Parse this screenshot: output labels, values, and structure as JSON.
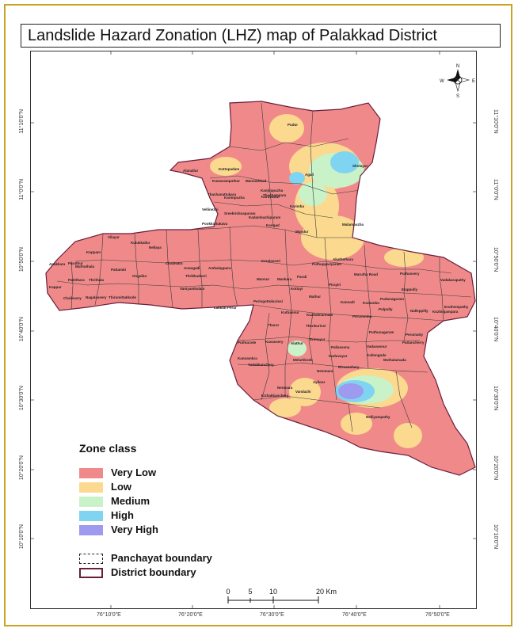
{
  "title": "Landslide Hazard Zonation (LHZ) map of  Palakkad District",
  "colors": {
    "very_low": "#f08a8a",
    "low": "#fbd98f",
    "medium": "#c9f2c9",
    "high": "#7fd4f2",
    "very_high": "#9e9af0",
    "district_boundary": "#6b1d3b",
    "frame": "#c9a227"
  },
  "north_arrow": {
    "n": "N",
    "s": "S",
    "e": "E",
    "w": "W"
  },
  "legend": {
    "title": "Zone class",
    "zones": [
      {
        "label": "Very Low",
        "color": "#f08a8a"
      },
      {
        "label": "Low",
        "color": "#fbd98f"
      },
      {
        "label": "Medium",
        "color": "#c9f2c9"
      },
      {
        "label": "High",
        "color": "#7fd4f2"
      },
      {
        "label": "Very High",
        "color": "#9e9af0"
      }
    ],
    "panchayat_boundary": "Panchayat boundary",
    "district_boundary": "District boundary"
  },
  "scale_bar": {
    "labels": [
      "0",
      "5",
      "10",
      "20 Km"
    ]
  },
  "x_ticks": [
    "76°10'0\"E",
    "76°20'0\"E",
    "76°30'0\"E",
    "76°40'0\"E",
    "76°50'0\"E"
  ],
  "y_ticks": [
    "11°10'0\"N",
    "11°0'0\"N",
    "10°50'0\"N",
    "10°40'0\"N",
    "10°30'0\"N",
    "10°20'0\"N",
    "10°10'0\"N"
  ],
  "places": [
    "Pudur",
    "Sholayur",
    "Agali",
    "Kottopadam",
    "Alanallur",
    "Kumaramputhur",
    "Mannarkkad",
    "Karimpuzha",
    "Sreekrishnapuram",
    "Kanjirapuzha",
    "Thachampara",
    "Kuruvattur",
    "Karimba",
    "Thachanattukara",
    "Vellinezhi",
    "Kadambazhipuram",
    "Pookkottukavu",
    "Kongad",
    "Mundur",
    "Malampuzha",
    "Akathethara",
    "Puthuppariyaram",
    "Marutha Road",
    "Puthussery",
    "Vadakarapathy",
    "Elappully",
    "Eruthempathy",
    "Pudunagaram",
    "Nalleppilly",
    "Kozhinjampara",
    "Perumatty",
    "Vilayur",
    "Kulukkallur",
    "Nellaya",
    "Thrikkadeeri",
    "Anangadi",
    "Chalavara",
    "Ongallur",
    "Vaniyamkulam",
    "Ambalappara",
    "Keralasseri",
    "Mannur",
    "Mankara",
    "Parali",
    "Pirayiri",
    "Kannadi",
    "Kodumbu",
    "Polpully",
    "Kottayi",
    "Mathur",
    "Kuthannur",
    "Kuzhalmannam",
    "Peruvemba",
    "Pattambi",
    "Muthuthala",
    "Koppam",
    "Paruthur",
    "Pattithara",
    "Anakkara",
    "Thrithala",
    "Nagalassery",
    "Chalissery",
    "Kappur",
    "Lakkidi-Perur",
    "Thirumittakkode",
    "Thenkurissi",
    "Vadavannur",
    "Puthunagaram",
    "Kollengode",
    "Muthalamada",
    "Pallassena",
    "Elevanchery",
    "Nemmara",
    "Ayiloor",
    "Melarkkode",
    "Alathur",
    "Erimayur",
    "Tharur",
    "Kavassery",
    "Vandazhi",
    "Kizhakkanchery",
    "Vadakkanchery",
    "Nenmara",
    "Kannambra",
    "Puthucode",
    "Nelliyampathy",
    "Pattancherry",
    "Koduvayur",
    "Peringottukurissi"
  ]
}
